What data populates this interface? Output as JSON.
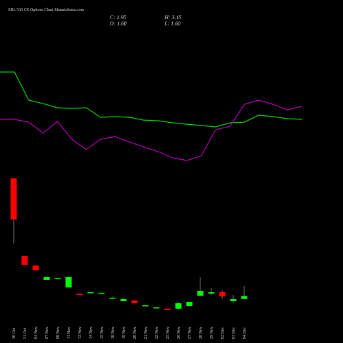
{
  "chart_data": {
    "type": "candlestick",
    "title": "SBL 530 CE Options Chart MunafaSutra.com",
    "stats": [
      "C: 1.95",
      "O: 1.60",
      "H: 3.15",
      "L: 1.60"
    ],
    "categories": [
      "30 Oct",
      "31 Oct",
      "04 Nov",
      "07 Nov",
      "08 Nov",
      "11 Nov",
      "13 Nov",
      "14 Nov",
      "15 Nov",
      "18 Nov",
      "19 Nov",
      "20 Nov",
      "21 Nov",
      "22 Nov",
      "25 Nov",
      "26 Nov",
      "27 Nov",
      "28 Nov",
      "29 Nov",
      "02 Dec",
      "03 Dec",
      "04 Dec"
    ],
    "open": [
      16.25,
      6.83,
      5.67,
      3.92,
      4.08,
      3.0,
      2.25,
      2.33,
      2.3,
      1.67,
      1.33,
      1.42,
      0.75,
      0.5,
      0.42,
      0.42,
      0.75,
      2.0,
      2.25,
      2.42,
      1.33,
      1.6
    ],
    "high": [
      16.25,
      6.83,
      5.67,
      4.25,
      4.17,
      4.25,
      2.25,
      2.42,
      2.35,
      1.9,
      1.75,
      1.42,
      0.83,
      0.58,
      0.42,
      1.25,
      1.25,
      4.25,
      2.92,
      2.67,
      2.08,
      3.15
    ],
    "low": [
      8.33,
      5.75,
      5.08,
      3.92,
      4.08,
      3.0,
      2.08,
      2.33,
      2.3,
      1.67,
      1.33,
      1.08,
      0.75,
      0.5,
      0.25,
      0.25,
      0.75,
      2.0,
      2.1,
      1.58,
      1.17,
      1.6
    ],
    "close": [
      11.25,
      5.75,
      5.08,
      4.25,
      4.17,
      4.25,
      2.08,
      2.42,
      2.35,
      1.75,
      1.58,
      1.08,
      0.83,
      0.58,
      0.25,
      1.08,
      1.25,
      2.58,
      2.42,
      1.92,
      1.58,
      1.95
    ],
    "up_color": "#00ff00",
    "down_color": "#ff0000",
    "wick_color": "#999999",
    "lines": [
      {
        "color": "#00dd00",
        "values": [
          29.17,
          29.17,
          25.75,
          25.33,
          24.83,
          24.75,
          24.83,
          23.67,
          23.75,
          23.67,
          23.33,
          23.25,
          23.0,
          22.83,
          22.67,
          22.5,
          23.0,
          23.08,
          23.92,
          23.75,
          23.5,
          23.42
        ]
      },
      {
        "color": "#bb00bb",
        "values": [
          23.42,
          23.42,
          23.08,
          21.75,
          23.17,
          21.0,
          19.75,
          21.0,
          21.33,
          20.67,
          20.08,
          19.5,
          18.75,
          18.42,
          19.0,
          22.17,
          22.58,
          25.25,
          25.75,
          25.25,
          24.58,
          25.0
        ]
      }
    ],
    "ylim": [
      -3.75,
      37.92
    ]
  }
}
